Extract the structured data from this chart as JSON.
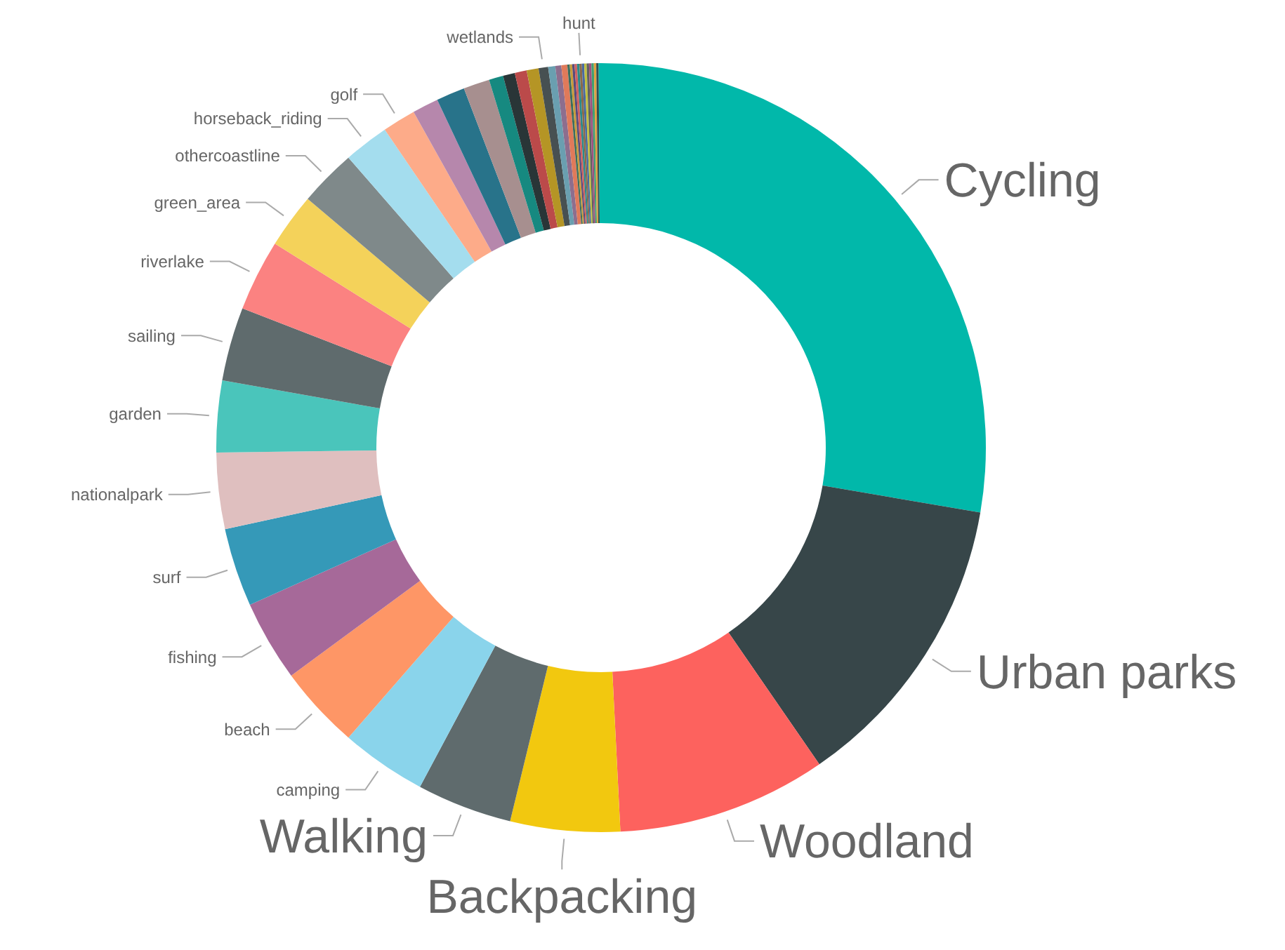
{
  "chart_data": {
    "type": "donut",
    "categories": [
      "Cycling",
      "Urban parks",
      "Woodland",
      "Backpacking",
      "Walking",
      "camping",
      "beach",
      "fishing",
      "surf",
      "nationalpark",
      "garden",
      "sailing",
      "riverlake",
      "green_area",
      "othercoastline",
      "horseback_riding",
      "golf",
      null,
      null,
      null,
      null,
      null,
      null,
      null,
      "wetlands",
      null,
      null,
      null,
      null,
      null,
      null,
      null,
      null,
      "hunt",
      null,
      null,
      null,
      null,
      null,
      null,
      null,
      null
    ],
    "values": [
      27.7,
      12.7,
      8.8,
      4.6,
      4.0,
      3.6,
      3.5,
      3.4,
      3.3,
      3.2,
      3.0,
      3.1,
      3.0,
      2.3,
      2.4,
      1.9,
      1.4,
      1.1,
      1.2,
      1.1,
      0.6,
      0.5,
      0.5,
      0.5,
      0.4,
      0.3,
      0.25,
      0.25,
      0.1,
      0.1,
      0.1,
      0.1,
      0.1,
      0.1,
      0.1,
      0.1,
      0.1,
      0.1,
      0.1,
      0.1,
      0.1,
      0.1
    ],
    "colors": [
      "#01b8aa",
      "#374649",
      "#fd625e",
      "#f2c80f",
      "#5f6b6d",
      "#8ad4eb",
      "#fe9666",
      "#a66999",
      "#3599b8",
      "#dfbfbf",
      "#4ac5bb",
      "#5f6b6d",
      "#fb8281",
      "#f4d25a",
      "#7f898a",
      "#a4ddee",
      "#fdab89",
      "#b687ac",
      "#28738a",
      "#a78f8f",
      "#168980",
      "#293537",
      "#bb4a4a",
      "#b59525",
      "#475052",
      "#6a9fb0",
      "#8d6e8e",
      "#e07a5a",
      "#3c6e5c",
      "#c79b3a",
      "#5a4a7a",
      "#d06060",
      "#2a8a8a",
      "#8a6a4a",
      "#4a6aa0",
      "#c0c040",
      "#606060",
      "#a05080",
      "#40a070",
      "#e0a040",
      "#305050",
      "#01b8aa"
    ]
  }
}
